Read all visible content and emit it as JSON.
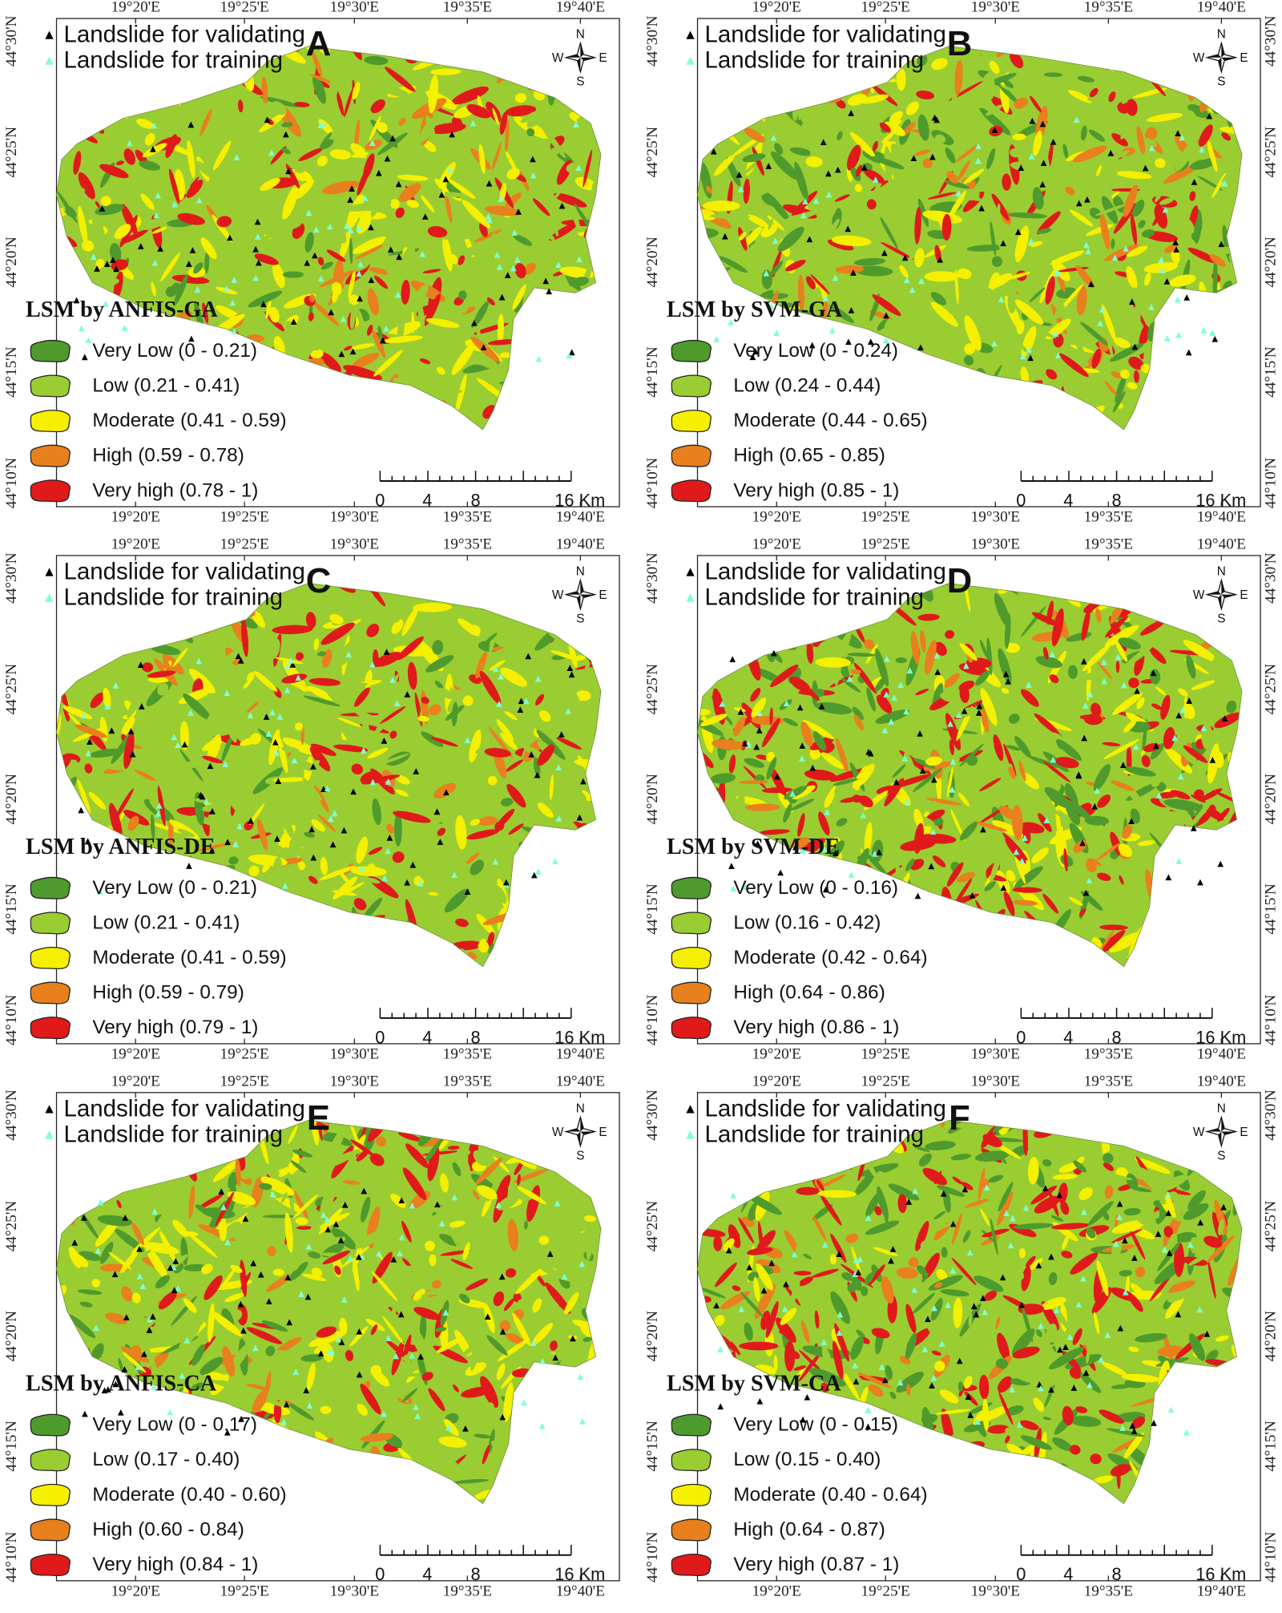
{
  "legend": {
    "validating": "Landslide for validating",
    "training": "Landslide for training"
  },
  "compass": {
    "n": "N",
    "s": "S",
    "e": "E",
    "w": "W"
  },
  "x_labels": [
    "19°20'E",
    "19°25'E",
    "19°30'E",
    "19°35'E",
    "19°40'E"
  ],
  "y_labels": [
    "44°30'N",
    "44°25'N",
    "44°20'N",
    "44°15'N",
    "44°10'N"
  ],
  "scale": [
    "0",
    "4",
    "8",
    "16 Km"
  ],
  "panels": [
    {
      "letter": "A",
      "title": "LSM by ANFIS-GA",
      "classes": [
        "Very Low (0 - 0.21)",
        "Low (0.21 - 0.41)",
        "Moderate (0.41 - 0.59)",
        "High (0.59 - 0.78)",
        "Very high (0.78 - 1)"
      ]
    },
    {
      "letter": "B",
      "title": "LSM by SVM-GA",
      "classes": [
        "Very Low (0 - 0.24)",
        "Low (0.24 - 0.44)",
        "Moderate (0.44 - 0.65)",
        "High (0.65 - 0.85)",
        "Very high (0.85 - 1)"
      ]
    },
    {
      "letter": "C",
      "title": "LSM by ANFIS-DE",
      "classes": [
        "Very Low (0 - 0.21)",
        "Low (0.21 - 0.41)",
        "Moderate (0.41 - 0.59)",
        "High (0.59 - 0.79)",
        "Very high (0.79 - 1)"
      ]
    },
    {
      "letter": "D",
      "title": "LSM by SVM-DE",
      "classes": [
        "Very Low (0 - 0.16)",
        "Low (0.16 - 0.42)",
        "Moderate (0.42 - 0.64)",
        "High (0.64 - 0.86)",
        "Very high (0.86 - 1)"
      ]
    },
    {
      "letter": "E",
      "title": "LSM by ANFIS-CA",
      "classes": [
        "Very Low (0 - 0.17)",
        "Low (0.17 - 0.40)",
        "Moderate (0.40 - 0.60)",
        "High (0.60 - 0.84)",
        "Very high (0.84 - 1)"
      ]
    },
    {
      "letter": "F",
      "title": "LSM by SVM-CA",
      "classes": [
        "Very Low (0 - 0.15)",
        "Low (0.15 - 0.40)",
        "Moderate (0.40 - 0.64)",
        "High (0.64 - 0.87)",
        "Very high (0.87 - 1)"
      ]
    }
  ]
}
